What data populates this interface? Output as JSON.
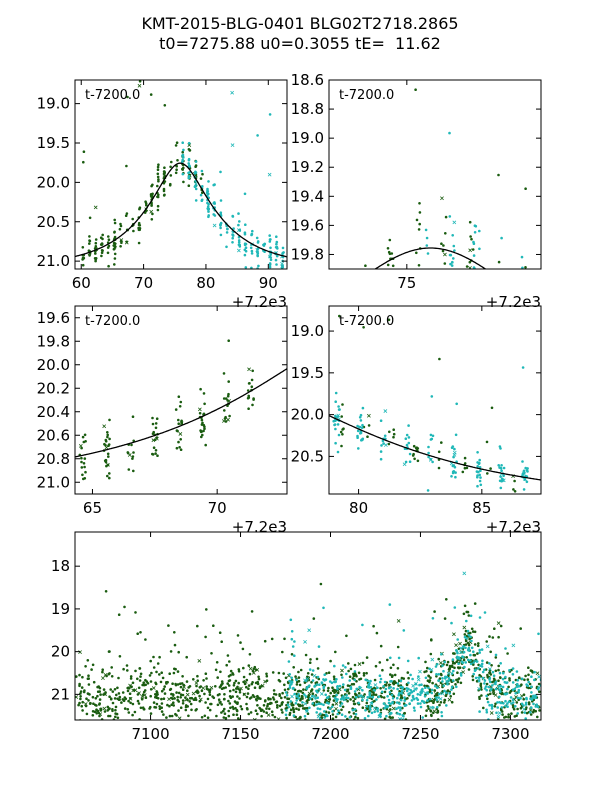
{
  "title": {
    "line1": "KMT-2015-BLG-0401 BLG02T2718.2865",
    "line2": "t0=7275.88 u0=0.3055 tE=  11.62"
  },
  "colors": {
    "dark_series": "#1a5c10",
    "cyan_series": "#20b8b8",
    "model_line": "#000000"
  },
  "model": {
    "t0": 7275.88,
    "u0": 0.3055,
    "tE": 11.62,
    "base_mag": 21.08
  },
  "chart_data": [
    {
      "type": "scatter",
      "panel": "top-left",
      "annotation": "t-7200.0",
      "x_offset_label": "+7.2e3",
      "xlim": [
        59,
        93
      ],
      "ylim": [
        21.1,
        18.7
      ],
      "y_inverted": true,
      "xticks": [
        60,
        70,
        80,
        90
      ],
      "xtick_labels": [
        "60",
        "70",
        "80",
        "90"
      ],
      "yticks": [
        19.0,
        19.5,
        20.0,
        20.5,
        21.0
      ],
      "ytick_labels": [
        "19.0",
        "19.5",
        "20.0",
        "20.5",
        "21.0"
      ],
      "series": [
        {
          "name": "dark",
          "x_range": [
            60,
            80
          ],
          "n": 220
        },
        {
          "name": "cyan",
          "x_range": [
            76,
            93
          ],
          "n": 200
        }
      ]
    },
    {
      "type": "scatter",
      "panel": "top-right",
      "annotation": "t-7200.0",
      "x_offset_label": "+7.2e3",
      "xlim": [
        72.1,
        80.0
      ],
      "ylim": [
        19.9,
        18.6
      ],
      "y_inverted": true,
      "xticks": [
        75
      ],
      "xtick_labels": [
        "75"
      ],
      "yticks": [
        18.6,
        18.8,
        19.0,
        19.2,
        19.4,
        19.6,
        19.8
      ],
      "ytick_labels": [
        "18.6",
        "18.8",
        "19.0",
        "19.2",
        "19.4",
        "19.6",
        "19.8"
      ],
      "series": [
        {
          "name": "dark",
          "x_range": [
            72.1,
            80
          ],
          "n": 70
        },
        {
          "name": "cyan",
          "x_range": [
            75.5,
            80
          ],
          "n": 60
        }
      ]
    },
    {
      "type": "scatter",
      "panel": "middle-left",
      "annotation": "t-7200.0",
      "x_offset_label": "+7.2e3",
      "xlim": [
        64.3,
        72.8
      ],
      "ylim": [
        21.1,
        19.5
      ],
      "y_inverted": true,
      "xticks": [
        65,
        70
      ],
      "xtick_labels": [
        "65",
        "70"
      ],
      "yticks": [
        19.6,
        19.8,
        20.0,
        20.2,
        20.4,
        20.6,
        20.8,
        21.0
      ],
      "ytick_labels": [
        "19.6",
        "19.8",
        "20.0",
        "20.2",
        "20.4",
        "20.6",
        "20.8",
        "21.0"
      ],
      "series": [
        {
          "name": "dark",
          "x_range": [
            64.3,
            72.0
          ],
          "n": 150
        }
      ]
    },
    {
      "type": "scatter",
      "panel": "middle-right",
      "annotation": "t-7200.0",
      "x_offset_label": "+7.2e3",
      "xlim": [
        78.8,
        87.4
      ],
      "ylim": [
        20.95,
        18.7
      ],
      "y_inverted": true,
      "xticks": [
        80,
        85
      ],
      "xtick_labels": [
        "80",
        "85"
      ],
      "yticks": [
        19.0,
        19.5,
        20.0,
        20.5
      ],
      "ytick_labels": [
        "19.0",
        "19.5",
        "20.0",
        "20.5"
      ],
      "series": [
        {
          "name": "dark",
          "x_range": [
            79,
            87
          ],
          "n": 50
        },
        {
          "name": "cyan",
          "x_range": [
            78.8,
            87.4
          ],
          "n": 160
        }
      ]
    },
    {
      "type": "scatter",
      "panel": "bottom",
      "annotation": "",
      "x_offset_label": "",
      "xlim": [
        7058,
        7317
      ],
      "ylim": [
        21.6,
        17.2
      ],
      "y_inverted": true,
      "xticks": [
        7100,
        7150,
        7200,
        7250,
        7300
      ],
      "xtick_labels": [
        "7100",
        "7150",
        "7200",
        "7250",
        "7300"
      ],
      "yticks": [
        18,
        19,
        20,
        21
      ],
      "ytick_labels": [
        "18",
        "19",
        "20",
        "21"
      ],
      "series": [
        {
          "name": "dark",
          "x_range": [
            7058,
            7317
          ],
          "n": 1400
        },
        {
          "name": "cyan",
          "x_range": [
            7175,
            7317
          ],
          "n": 600
        }
      ]
    }
  ]
}
